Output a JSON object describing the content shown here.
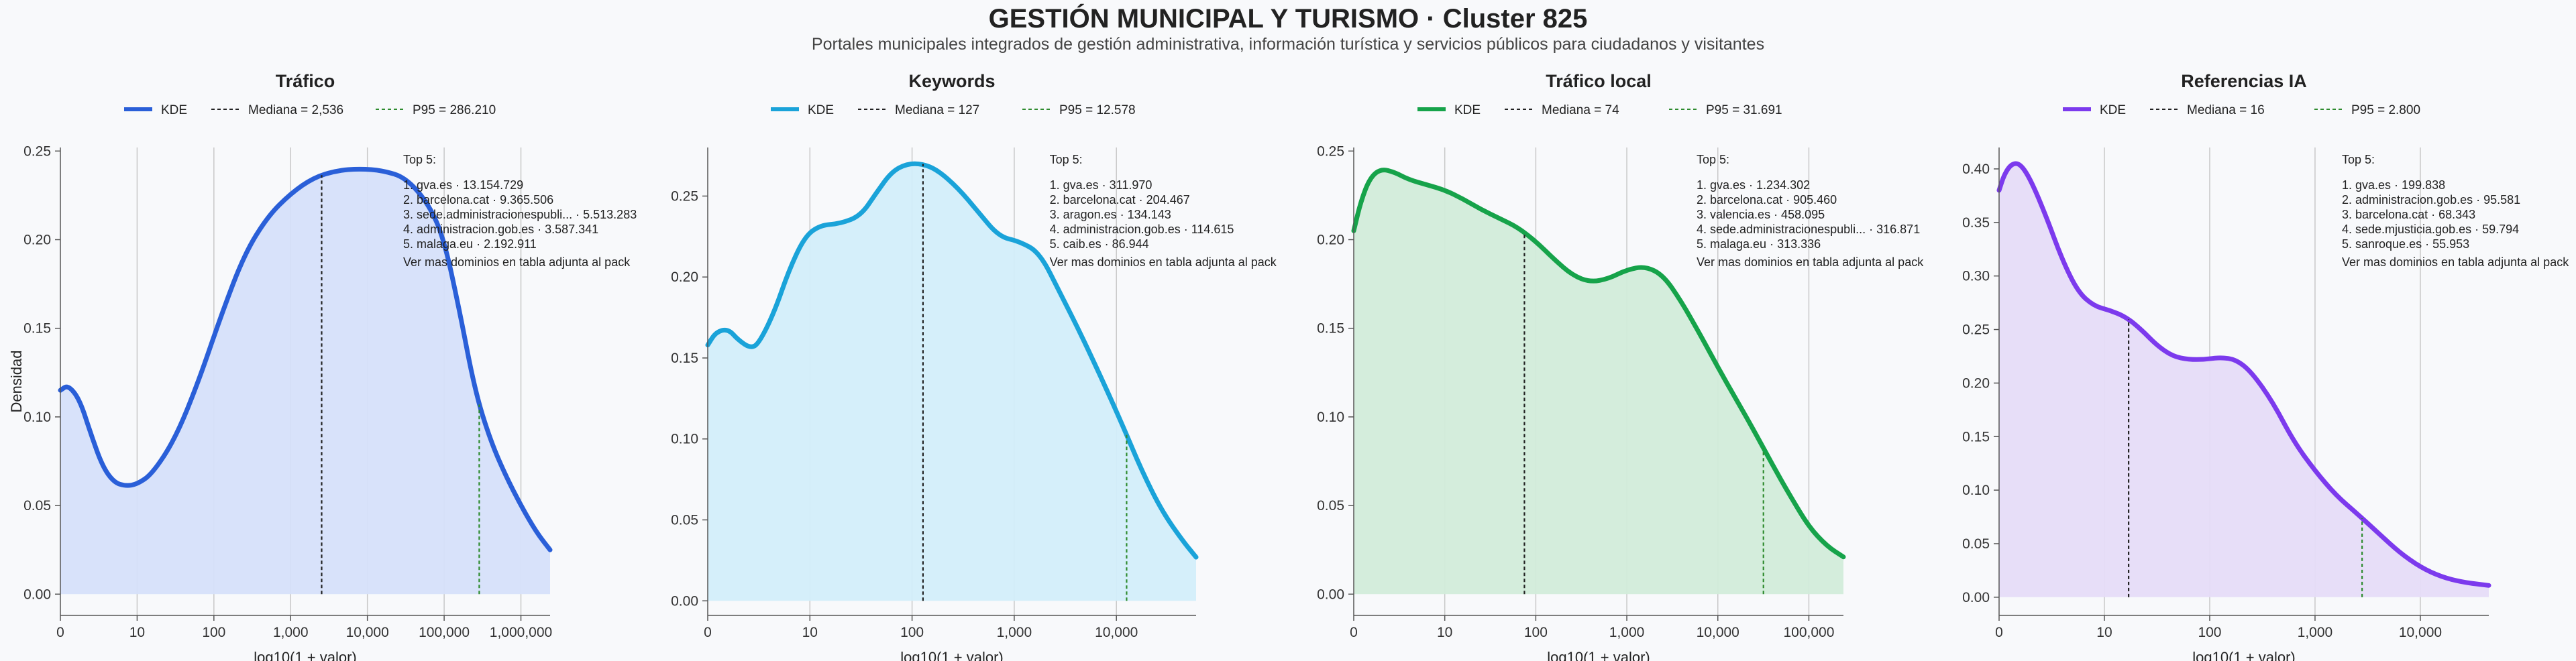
{
  "title": "GESTIÓN MUNICIPAL Y TURISMO · Cluster 825",
  "subtitle": "Portales municipales integrados de gestión administrativa, información turística y servicios públicos para ciudadanos y visitantes",
  "y_axis_label": "Densidad",
  "colors": {
    "grid": "#c8c8c8",
    "median_line": "#222222",
    "p95_line": "#2e8b2e"
  },
  "chart_data": [
    {
      "type": "area",
      "title": "Tráfico",
      "xlabel": "log10(1 + valor)",
      "ylabel": "Densidad",
      "color": "#2a5fd8",
      "fill": "#d6e0fa",
      "xlim": [
        0,
        6.38
      ],
      "ylim": [
        -0.012,
        0.252
      ],
      "xticks": [
        0,
        1,
        2,
        3,
        4,
        5,
        6
      ],
      "xtick_labels": [
        "0",
        "10",
        "100",
        "1,000",
        "10,000",
        "100,000",
        "1,000,000"
      ],
      "yticks": [
        0,
        0.05,
        0.1,
        0.15,
        0.2,
        0.25
      ],
      "ytick_labels": [
        "0.00",
        "0.05",
        "0.10",
        "0.15",
        "0.20",
        "0.25"
      ],
      "legend": {
        "kde": "KDE",
        "median": "Mediana = 2,536",
        "p95": "P95 = 286.210"
      },
      "median": 3.404,
      "p95": 5.457,
      "kde": {
        "x": [
          0,
          0.1,
          0.25,
          0.4,
          0.55,
          0.7,
          0.85,
          1.0,
          1.2,
          1.5,
          1.8,
          2.1,
          2.4,
          2.7,
          3.0,
          3.3,
          3.6,
          3.9,
          4.2,
          4.5,
          4.8,
          5.0,
          5.2,
          5.4,
          5.6,
          5.8,
          6.0,
          6.2,
          6.38
        ],
        "y": [
          0.115,
          0.118,
          0.11,
          0.09,
          0.072,
          0.063,
          0.061,
          0.062,
          0.068,
          0.088,
          0.12,
          0.158,
          0.192,
          0.213,
          0.226,
          0.235,
          0.239,
          0.24,
          0.239,
          0.235,
          0.22,
          0.2,
          0.16,
          0.115,
          0.087,
          0.067,
          0.05,
          0.035,
          0.025
        ]
      },
      "top5": {
        "heading": "Top 5:",
        "items": [
          "1. gva.es · 13.154.729",
          "2. barcelona.cat · 9.365.506",
          "3. sede.administracionespubli... · 5.513.283",
          "4. administracion.gob.es · 3.587.341",
          "5. malaga.eu · 2.192.911"
        ],
        "footer": "Ver mas dominios en tabla adjunta al pack"
      }
    },
    {
      "type": "area",
      "title": "Keywords",
      "xlabel": "log10(1 + valor)",
      "ylabel": "",
      "color": "#1aa3d9",
      "fill": "#d3eefa",
      "xlim": [
        0,
        4.78
      ],
      "ylim": [
        -0.009,
        0.28
      ],
      "xticks": [
        0,
        1,
        2,
        3,
        4
      ],
      "xtick_labels": [
        "0",
        "10",
        "100",
        "1,000",
        "10,000"
      ],
      "yticks": [
        0,
        0.05,
        0.1,
        0.15,
        0.2,
        0.25
      ],
      "ytick_labels": [
        "0.00",
        "0.05",
        "0.10",
        "0.15",
        "0.20",
        "0.25"
      ],
      "legend": {
        "kde": "KDE",
        "median": "Mediana = 127",
        "p95": "P95 = 12.578"
      },
      "median": 2.107,
      "p95": 4.1,
      "kde": {
        "x": [
          0,
          0.08,
          0.2,
          0.3,
          0.42,
          0.5,
          0.65,
          0.8,
          0.95,
          1.1,
          1.3,
          1.5,
          1.65,
          1.8,
          1.95,
          2.1,
          2.25,
          2.45,
          2.65,
          2.85,
          3.05,
          3.25,
          3.45,
          3.65,
          3.85,
          4.05,
          4.25,
          4.45,
          4.65,
          4.78
        ],
        "y": [
          0.158,
          0.166,
          0.168,
          0.161,
          0.156,
          0.159,
          0.178,
          0.205,
          0.225,
          0.232,
          0.233,
          0.238,
          0.252,
          0.265,
          0.27,
          0.27,
          0.266,
          0.255,
          0.24,
          0.225,
          0.222,
          0.215,
          0.19,
          0.165,
          0.138,
          0.11,
          0.08,
          0.055,
          0.037,
          0.027
        ]
      },
      "top5": {
        "heading": "Top 5:",
        "items": [
          "1. gva.es · 311.970",
          "2. barcelona.cat · 204.467",
          "3. aragon.es · 134.143",
          "4. administracion.gob.es · 114.615",
          "5. caib.es · 86.944"
        ],
        "footer": "Ver mas dominios en tabla adjunta al pack"
      }
    },
    {
      "type": "area",
      "title": "Tráfico local",
      "xlabel": "log10(1 + valor)",
      "ylabel": "",
      "color": "#16a34a",
      "fill": "#d2ecda",
      "xlim": [
        0,
        5.38
      ],
      "ylim": [
        -0.012,
        0.252
      ],
      "xticks": [
        0,
        1,
        2,
        3,
        4,
        5
      ],
      "xtick_labels": [
        "0",
        "10",
        "100",
        "1,000",
        "10,000",
        "100,000"
      ],
      "yticks": [
        0,
        0.05,
        0.1,
        0.15,
        0.2,
        0.25
      ],
      "ytick_labels": [
        "0.00",
        "0.05",
        "0.10",
        "0.15",
        "0.20",
        "0.25"
      ],
      "legend": {
        "kde": "KDE",
        "median": "Mediana = 74",
        "p95": "P95 = 31.691"
      },
      "median": 1.875,
      "p95": 4.501,
      "kde": {
        "x": [
          0,
          0.08,
          0.18,
          0.3,
          0.45,
          0.6,
          0.8,
          1.0,
          1.2,
          1.4,
          1.6,
          1.8,
          2.0,
          2.2,
          2.4,
          2.6,
          2.8,
          3.0,
          3.2,
          3.4,
          3.6,
          3.8,
          4.0,
          4.2,
          4.4,
          4.6,
          4.8,
          5.0,
          5.2,
          5.38
        ],
        "y": [
          0.205,
          0.222,
          0.235,
          0.24,
          0.238,
          0.234,
          0.231,
          0.228,
          0.223,
          0.217,
          0.212,
          0.207,
          0.199,
          0.189,
          0.18,
          0.176,
          0.178,
          0.183,
          0.185,
          0.18,
          0.165,
          0.147,
          0.128,
          0.11,
          0.092,
          0.073,
          0.055,
          0.038,
          0.027,
          0.021
        ]
      },
      "top5": {
        "heading": "Top 5:",
        "items": [
          "1. gva.es · 1.234.302",
          "2. barcelona.cat · 905.460",
          "3. valencia.es · 458.095",
          "4. sede.administracionespubli... · 316.871",
          "5. malaga.eu · 313.336"
        ],
        "footer": "Ver mas dominios en tabla adjunta al pack"
      }
    },
    {
      "type": "area",
      "title": "Referencias IA",
      "xlabel": "log10(1 + valor)",
      "ylabel": "",
      "color": "#7c3aed",
      "fill": "#e6dcf8",
      "xlim": [
        0,
        4.65
      ],
      "ylim": [
        -0.017,
        0.42
      ],
      "xticks": [
        0,
        1,
        2,
        3,
        4
      ],
      "xtick_labels": [
        "0",
        "10",
        "100",
        "1,000",
        "10,000"
      ],
      "yticks": [
        0,
        0.05,
        0.1,
        0.15,
        0.2,
        0.25,
        0.3,
        0.35,
        0.4
      ],
      "ytick_labels": [
        "0.00",
        "0.05",
        "0.10",
        "0.15",
        "0.20",
        "0.25",
        "0.30",
        "0.35",
        "0.40"
      ],
      "legend": {
        "kde": "KDE",
        "median": "Mediana = 16",
        "p95": "P95 = 2.800"
      },
      "median": 1.23,
      "p95": 3.447,
      "kde": {
        "x": [
          0,
          0.05,
          0.12,
          0.2,
          0.3,
          0.45,
          0.6,
          0.75,
          0.9,
          1.05,
          1.2,
          1.35,
          1.5,
          1.65,
          1.8,
          1.95,
          2.1,
          2.25,
          2.4,
          2.6,
          2.8,
          3.0,
          3.2,
          3.4,
          3.6,
          3.8,
          4.0,
          4.2,
          4.4,
          4.65
        ],
        "y": [
          0.38,
          0.395,
          0.405,
          0.405,
          0.39,
          0.355,
          0.315,
          0.285,
          0.272,
          0.268,
          0.262,
          0.25,
          0.235,
          0.225,
          0.222,
          0.222,
          0.224,
          0.222,
          0.21,
          0.182,
          0.145,
          0.118,
          0.095,
          0.078,
          0.06,
          0.042,
          0.028,
          0.019,
          0.014,
          0.011
        ]
      },
      "top5": {
        "heading": "Top 5:",
        "items": [
          "1. gva.es · 199.838",
          "2. administracion.gob.es · 95.581",
          "3. barcelona.cat · 68.343",
          "4. sede.mjusticia.gob.es · 59.794",
          "5. sanroque.es · 55.953"
        ],
        "footer": "Ver mas dominios en tabla adjunta al pack"
      }
    }
  ]
}
